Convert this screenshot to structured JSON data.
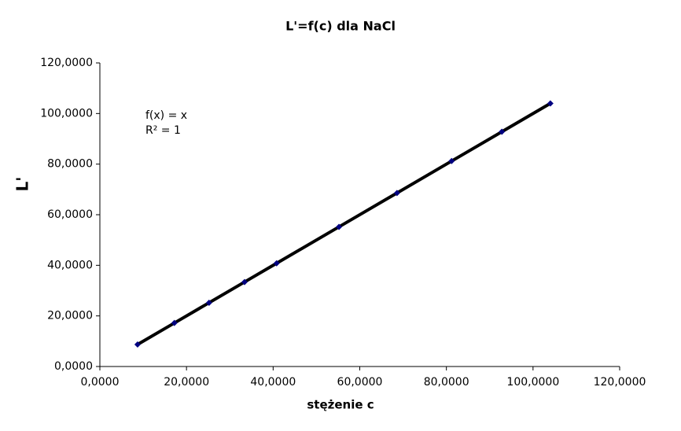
{
  "chart_data": {
    "type": "scatter",
    "title": "L'=f(c) dla NaCl",
    "x_label": "stężenie c",
    "y_label": "L'",
    "annotations": [
      "f(x) = x",
      "R² = 1"
    ],
    "x": [
      8.7,
      17.2,
      25.2,
      33.4,
      40.8,
      55.2,
      68.6,
      81.2,
      92.8,
      104.0
    ],
    "values": [
      8.7,
      17.2,
      25.2,
      33.4,
      40.8,
      55.2,
      68.6,
      81.2,
      92.8,
      104.0
    ],
    "color": "#000080",
    "trendline": true,
    "trendline_color": "#000000",
    "xlim": [
      0,
      120
    ],
    "ylim": [
      0,
      120
    ],
    "xticks": [
      {
        "value": 0,
        "label": "0,0000"
      },
      {
        "value": 20,
        "label": "20,0000"
      },
      {
        "value": 40,
        "label": "40,0000"
      },
      {
        "value": 60,
        "label": "60,0000"
      },
      {
        "value": 80,
        "label": "80,0000"
      },
      {
        "value": 100,
        "label": "100,0000"
      },
      {
        "value": 120,
        "label": "120,0000"
      }
    ],
    "yticks": [
      {
        "value": 0,
        "label": "0,0000"
      },
      {
        "value": 20,
        "label": "20,0000"
      },
      {
        "value": 40,
        "label": "40,0000"
      },
      {
        "value": 60,
        "label": "60,0000"
      },
      {
        "value": 80,
        "label": "80,0000"
      },
      {
        "value": 100,
        "label": "100,0000"
      },
      {
        "value": 120,
        "label": "120,0000"
      }
    ],
    "grid": false
  }
}
